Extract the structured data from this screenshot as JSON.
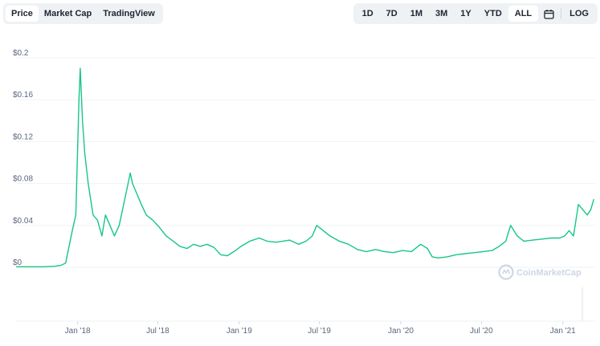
{
  "tabs_left": [
    {
      "label": "Price",
      "active": true
    },
    {
      "label": "Market Cap",
      "active": false
    },
    {
      "label": "TradingView",
      "active": false
    }
  ],
  "tabs_right": {
    "ranges": [
      {
        "label": "1D",
        "active": false
      },
      {
        "label": "7D",
        "active": false
      },
      {
        "label": "1M",
        "active": false
      },
      {
        "label": "3M",
        "active": false
      },
      {
        "label": "1Y",
        "active": false
      },
      {
        "label": "YTD",
        "active": false
      },
      {
        "label": "ALL",
        "active": true
      }
    ],
    "calendar_icon": "calendar-icon",
    "log_label": "LOG"
  },
  "watermark": "CoinMarketCap",
  "colors": {
    "line": "#16c784",
    "grid": "#eff2f5",
    "text": "#58667e"
  },
  "chart_data": {
    "type": "line",
    "y_ticks": [
      "$0",
      "$0.04",
      "$0.08",
      "$0.12",
      "$0.16",
      "$0.2"
    ],
    "y_tick_values": [
      0,
      0.04,
      0.08,
      0.12,
      0.16,
      0.2
    ],
    "x_ticks": [
      "Jan '18",
      "Jul '18",
      "Jan '19",
      "Jul '19",
      "Jan '20",
      "Jul '20",
      "Jan '21"
    ],
    "x_tick_dates": [
      "2018-01-01",
      "2018-07-01",
      "2019-01-01",
      "2019-07-01",
      "2020-01-01",
      "2020-07-01",
      "2021-01-01"
    ],
    "xlim": [
      "2017-08-15",
      "2021-03-15"
    ],
    "ylim": [
      0,
      0.2
    ],
    "grid": true,
    "series": [
      {
        "x": [
          "2017-08-15",
          "2017-09-15",
          "2017-10-15",
          "2017-11-10",
          "2017-11-25",
          "2017-12-05",
          "2017-12-20",
          "2017-12-28",
          "2018-01-04",
          "2018-01-07",
          "2018-01-12",
          "2018-01-17",
          "2018-01-25",
          "2018-02-05",
          "2018-02-15",
          "2018-02-25",
          "2018-03-05",
          "2018-03-15",
          "2018-03-25",
          "2018-04-05",
          "2018-04-20",
          "2018-04-30",
          "2018-05-05",
          "2018-05-15",
          "2018-05-25",
          "2018-06-05",
          "2018-06-20",
          "2018-07-05",
          "2018-07-20",
          "2018-08-05",
          "2018-08-20",
          "2018-09-05",
          "2018-09-20",
          "2018-10-05",
          "2018-10-20",
          "2018-11-05",
          "2018-11-20",
          "2018-12-05",
          "2018-12-20",
          "2019-01-05",
          "2019-01-25",
          "2019-02-15",
          "2019-03-05",
          "2019-03-25",
          "2019-04-10",
          "2019-04-25",
          "2019-05-15",
          "2019-06-01",
          "2019-06-15",
          "2019-06-25",
          "2019-07-10",
          "2019-07-25",
          "2019-08-15",
          "2019-09-05",
          "2019-09-25",
          "2019-10-15",
          "2019-11-05",
          "2019-11-25",
          "2019-12-15",
          "2020-01-05",
          "2020-01-25",
          "2020-02-15",
          "2020-03-01",
          "2020-03-12",
          "2020-03-25",
          "2020-04-15",
          "2020-05-05",
          "2020-05-25",
          "2020-06-15",
          "2020-07-05",
          "2020-07-25",
          "2020-08-10",
          "2020-08-25",
          "2020-09-05",
          "2020-09-20",
          "2020-10-05",
          "2020-10-25",
          "2020-11-15",
          "2020-12-05",
          "2020-12-25",
          "2021-01-05",
          "2021-01-15",
          "2021-01-25",
          "2021-02-05",
          "2021-02-15",
          "2021-02-25",
          "2021-03-05",
          "2021-03-12"
        ],
        "y": [
          0.0005,
          0.0005,
          0.0005,
          0.001,
          0.002,
          0.004,
          0.035,
          0.05,
          0.16,
          0.19,
          0.14,
          0.11,
          0.08,
          0.05,
          0.045,
          0.03,
          0.05,
          0.04,
          0.03,
          0.04,
          0.07,
          0.09,
          0.08,
          0.07,
          0.06,
          0.05,
          0.045,
          0.038,
          0.03,
          0.025,
          0.02,
          0.018,
          0.022,
          0.02,
          0.022,
          0.019,
          0.012,
          0.011,
          0.015,
          0.02,
          0.025,
          0.028,
          0.025,
          0.024,
          0.025,
          0.026,
          0.022,
          0.025,
          0.03,
          0.04,
          0.035,
          0.03,
          0.025,
          0.022,
          0.017,
          0.015,
          0.017,
          0.015,
          0.014,
          0.016,
          0.015,
          0.022,
          0.018,
          0.01,
          0.009,
          0.01,
          0.012,
          0.013,
          0.014,
          0.015,
          0.016,
          0.02,
          0.025,
          0.04,
          0.03,
          0.025,
          0.026,
          0.027,
          0.028,
          0.028,
          0.03,
          0.035,
          0.03,
          0.06,
          0.055,
          0.05,
          0.055,
          0.065
        ]
      }
    ]
  }
}
